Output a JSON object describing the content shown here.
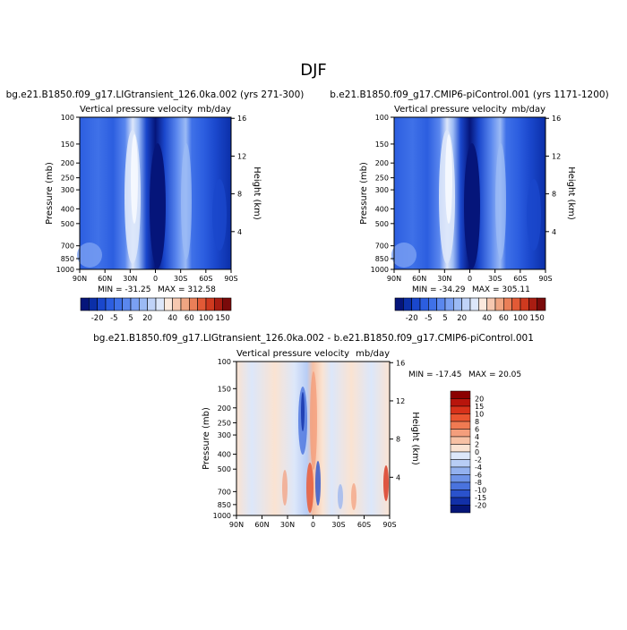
{
  "page": {
    "title": "DJF"
  },
  "colorbar_panels": {
    "levels": [
      -20,
      -5,
      5,
      20,
      40,
      60,
      100,
      150
    ],
    "colors": [
      "#05157a",
      "#0b2fa8",
      "#1a47cc",
      "#2c5ee0",
      "#3f71e8",
      "#5a87ee",
      "#7aa0f2",
      "#9bbaf5",
      "#c0d3f8",
      "#dde7fa",
      "#fbe9dd",
      "#f6c8b0",
      "#f0a582",
      "#ea7f58",
      "#e25a36",
      "#cf3a1f",
      "#a91d12",
      "#7a0a0a"
    ]
  },
  "colorbar_diff": {
    "levels": [
      20,
      15,
      10,
      8,
      6,
      4,
      2,
      0,
      -2,
      -4,
      -6,
      -8,
      -10,
      -15,
      -20
    ],
    "colors": [
      "#8b0000",
      "#b8150c",
      "#d8321a",
      "#ea5530",
      "#f07a52",
      "#f49e7c",
      "#f7c1a4",
      "#fae3d2",
      "#dce7fa",
      "#b8cdf5",
      "#93b1ef",
      "#6e93e8",
      "#4a73de",
      "#2a52cc",
      "#1230a8",
      "#051577"
    ]
  },
  "chart_data": [
    {
      "type": "heatmap",
      "title": "bg.e21.B1850.f09_g17.LIGtransient_126.0ka.002 (yrs 271-300)",
      "subtitle_left": "Vertical pressure velocity",
      "subtitle_right": "mb/day",
      "ylabel": "Pressure (mb)",
      "ylabel_right": "Height (km)",
      "x_ticks": [
        "90N",
        "60N",
        "30N",
        "0",
        "30S",
        "60S",
        "90S"
      ],
      "y_ticks": [
        "100",
        "150",
        "200",
        "250",
        "300",
        "400",
        "500",
        "700",
        "850",
        "1000"
      ],
      "y_right_ticks": [
        "16",
        "12",
        "8",
        "4"
      ],
      "min_label": "MIN = -31.25",
      "max_label": "MAX = 312.58"
    },
    {
      "type": "heatmap",
      "title": "b.e21.B1850.f09_g17.CMIP6-piControl.001 (yrs 1171-1200)",
      "subtitle_left": "Vertical pressure velocity",
      "subtitle_right": "mb/day",
      "ylabel": "Pressure (mb)",
      "ylabel_right": "Height (km)",
      "x_ticks": [
        "90N",
        "60N",
        "30N",
        "0",
        "30S",
        "60S",
        "90S"
      ],
      "y_ticks": [
        "100",
        "150",
        "200",
        "250",
        "300",
        "400",
        "500",
        "700",
        "850",
        "1000"
      ],
      "y_right_ticks": [
        "16",
        "12",
        "8",
        "4"
      ],
      "min_label": "MIN = -34.29",
      "max_label": "MAX = 305.11"
    },
    {
      "type": "heatmap",
      "title": "bg.e21.B1850.f09_g17.LIGtransient_126.0ka.002 - b.e21.B1850.f09_g17.CMIP6-piControl.001",
      "subtitle_left": "Vertical pressure velocity",
      "subtitle_right": "mb/day",
      "ylabel": "Pressure (mb)",
      "ylabel_right": "Height (km)",
      "x_ticks": [
        "90N",
        "60N",
        "30N",
        "0",
        "30S",
        "60S",
        "90S"
      ],
      "y_ticks": [
        "100",
        "150",
        "200",
        "250",
        "300",
        "400",
        "500",
        "700",
        "850",
        "1000"
      ],
      "y_right_ticks": [
        "16",
        "12",
        "8",
        "4"
      ],
      "min_label": "MIN = -17.45",
      "max_label": "MAX = 20.05"
    }
  ]
}
